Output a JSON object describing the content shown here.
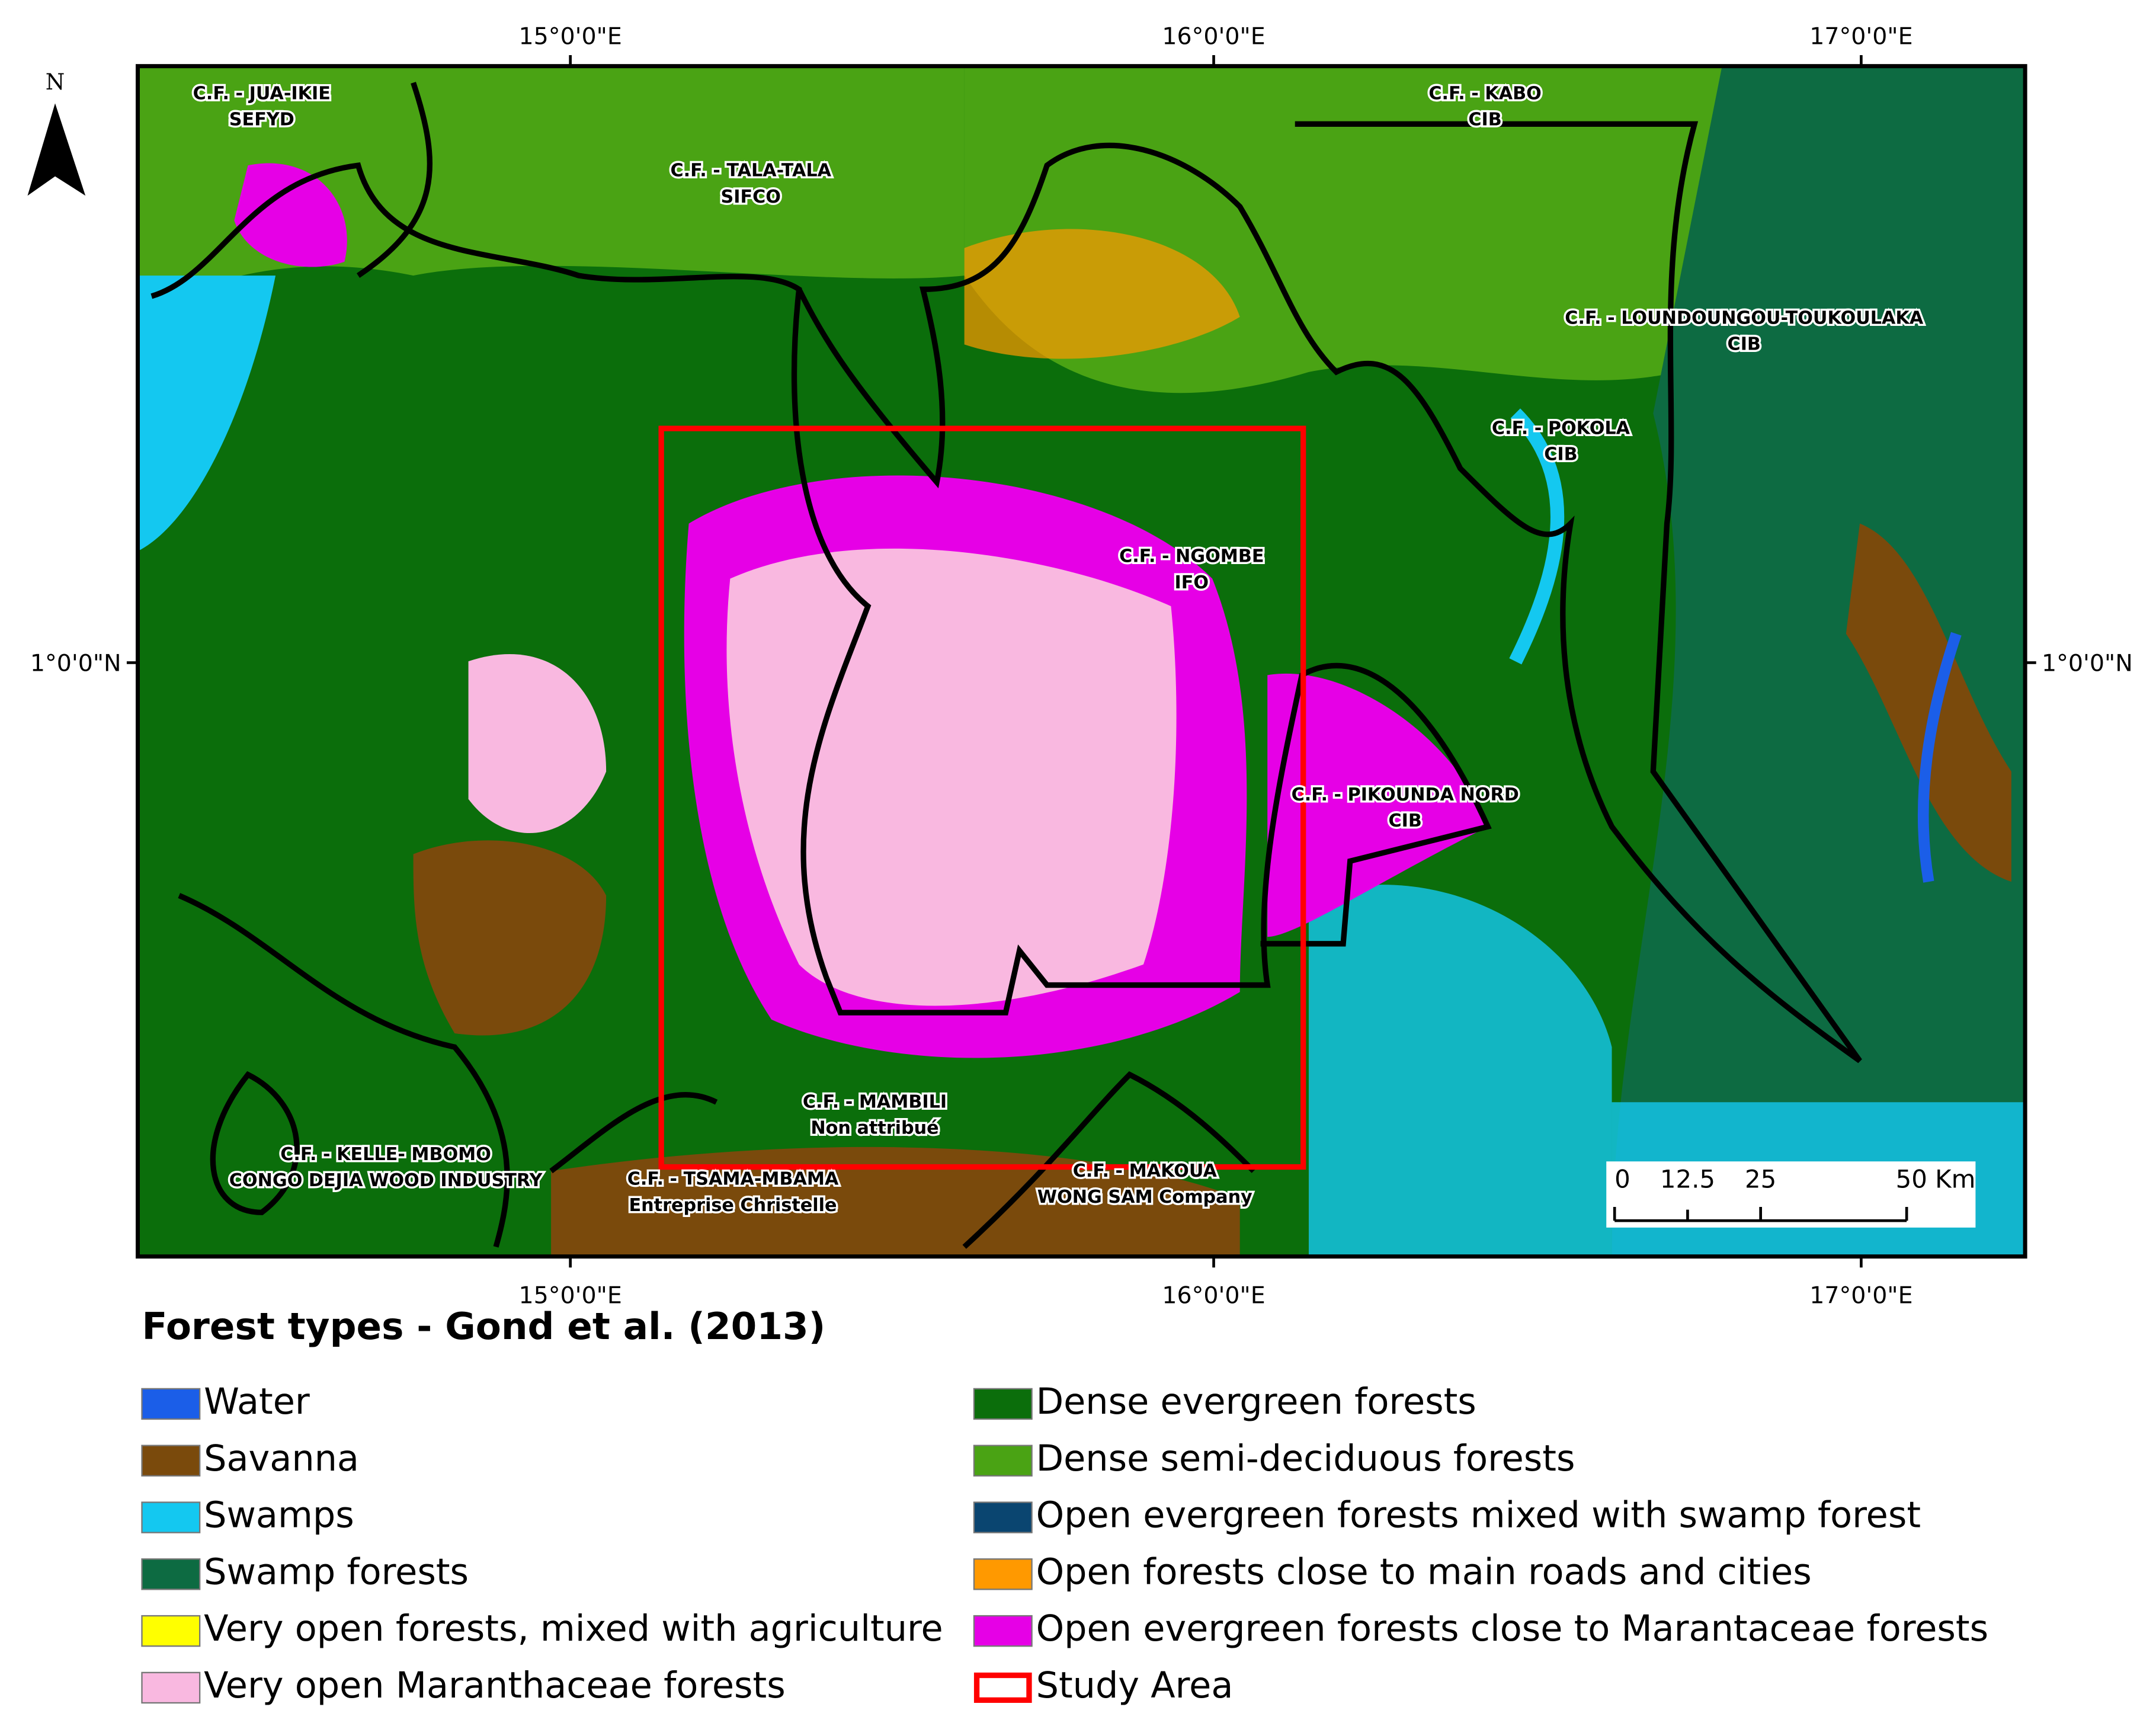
{
  "map": {
    "north_label": "N",
    "top_ticks": [
      "15°0'0\"E",
      "16°0'0\"E",
      "17°0'0\"E"
    ],
    "bottom_ticks": [
      "15°0'0\"E",
      "16°0'0\"E",
      "17°0'0\"E"
    ],
    "left_ticks": [
      "1°0'0\"N"
    ],
    "right_ticks": [
      "1°0'0\"N"
    ],
    "concessions": [
      {
        "name": "C.F. - JUA-IKIE",
        "company": "SEFYD"
      },
      {
        "name": "C.F. - TALA-TALA",
        "company": "SIFCO"
      },
      {
        "name": "C.F. - KABO",
        "company": "CIB"
      },
      {
        "name": "C.F. - LOUNDOUNGOU-TOUKOULAKA",
        "company": "CIB"
      },
      {
        "name": "C.F. - POKOLA",
        "company": "CIB"
      },
      {
        "name": "C.F. - NGOMBE",
        "company": "IFO"
      },
      {
        "name": "C.F. - PIKOUNDA NORD",
        "company": "CIB"
      },
      {
        "name": "C.F. - MAMBILI",
        "company": "Non attribué"
      },
      {
        "name": "C.F. - KELLE- MBOMO",
        "company": "CONGO DEJIA WOOD INDUSTRY"
      },
      {
        "name": "C.F. - TSAMA-MBAMA",
        "company": "Entreprise Christelle"
      },
      {
        "name": "C.F. - MAKOUA",
        "company": "WONG SAM Company"
      }
    ],
    "scale_bar": {
      "labels": [
        "0",
        "12.5",
        "25",
        "50 Km"
      ]
    }
  },
  "legend": {
    "title": "Forest types - Gond et al. (2013)",
    "items": [
      {
        "label": "Water",
        "color": "#1b5ee8"
      },
      {
        "label": "Savanna",
        "color": "#7a4a0c"
      },
      {
        "label": "Swamps",
        "color": "#14c8f0"
      },
      {
        "label": "Swamp forests",
        "color": "#0d6b42"
      },
      {
        "label": "Very open forests, mixed with agriculture",
        "color": "#ffff00"
      },
      {
        "label": "Very open Maranthaceae forests",
        "color": "#f9b8e0"
      },
      {
        "label": "Dense evergreen forests",
        "color": "#0b6e0b"
      },
      {
        "label": "Dense semi-deciduous forests",
        "color": "#4aa314"
      },
      {
        "label": "Open evergreen forests mixed with swamp forest",
        "color": "#0a4570"
      },
      {
        "label": "Open forests close to main roads and cities",
        "color": "#ff9900"
      },
      {
        "label": "Open evergreen forests close to Marantaceae forests",
        "color": "#e600e6"
      },
      {
        "label": "Study Area",
        "color": "#ff0000",
        "style": "outline"
      }
    ]
  }
}
